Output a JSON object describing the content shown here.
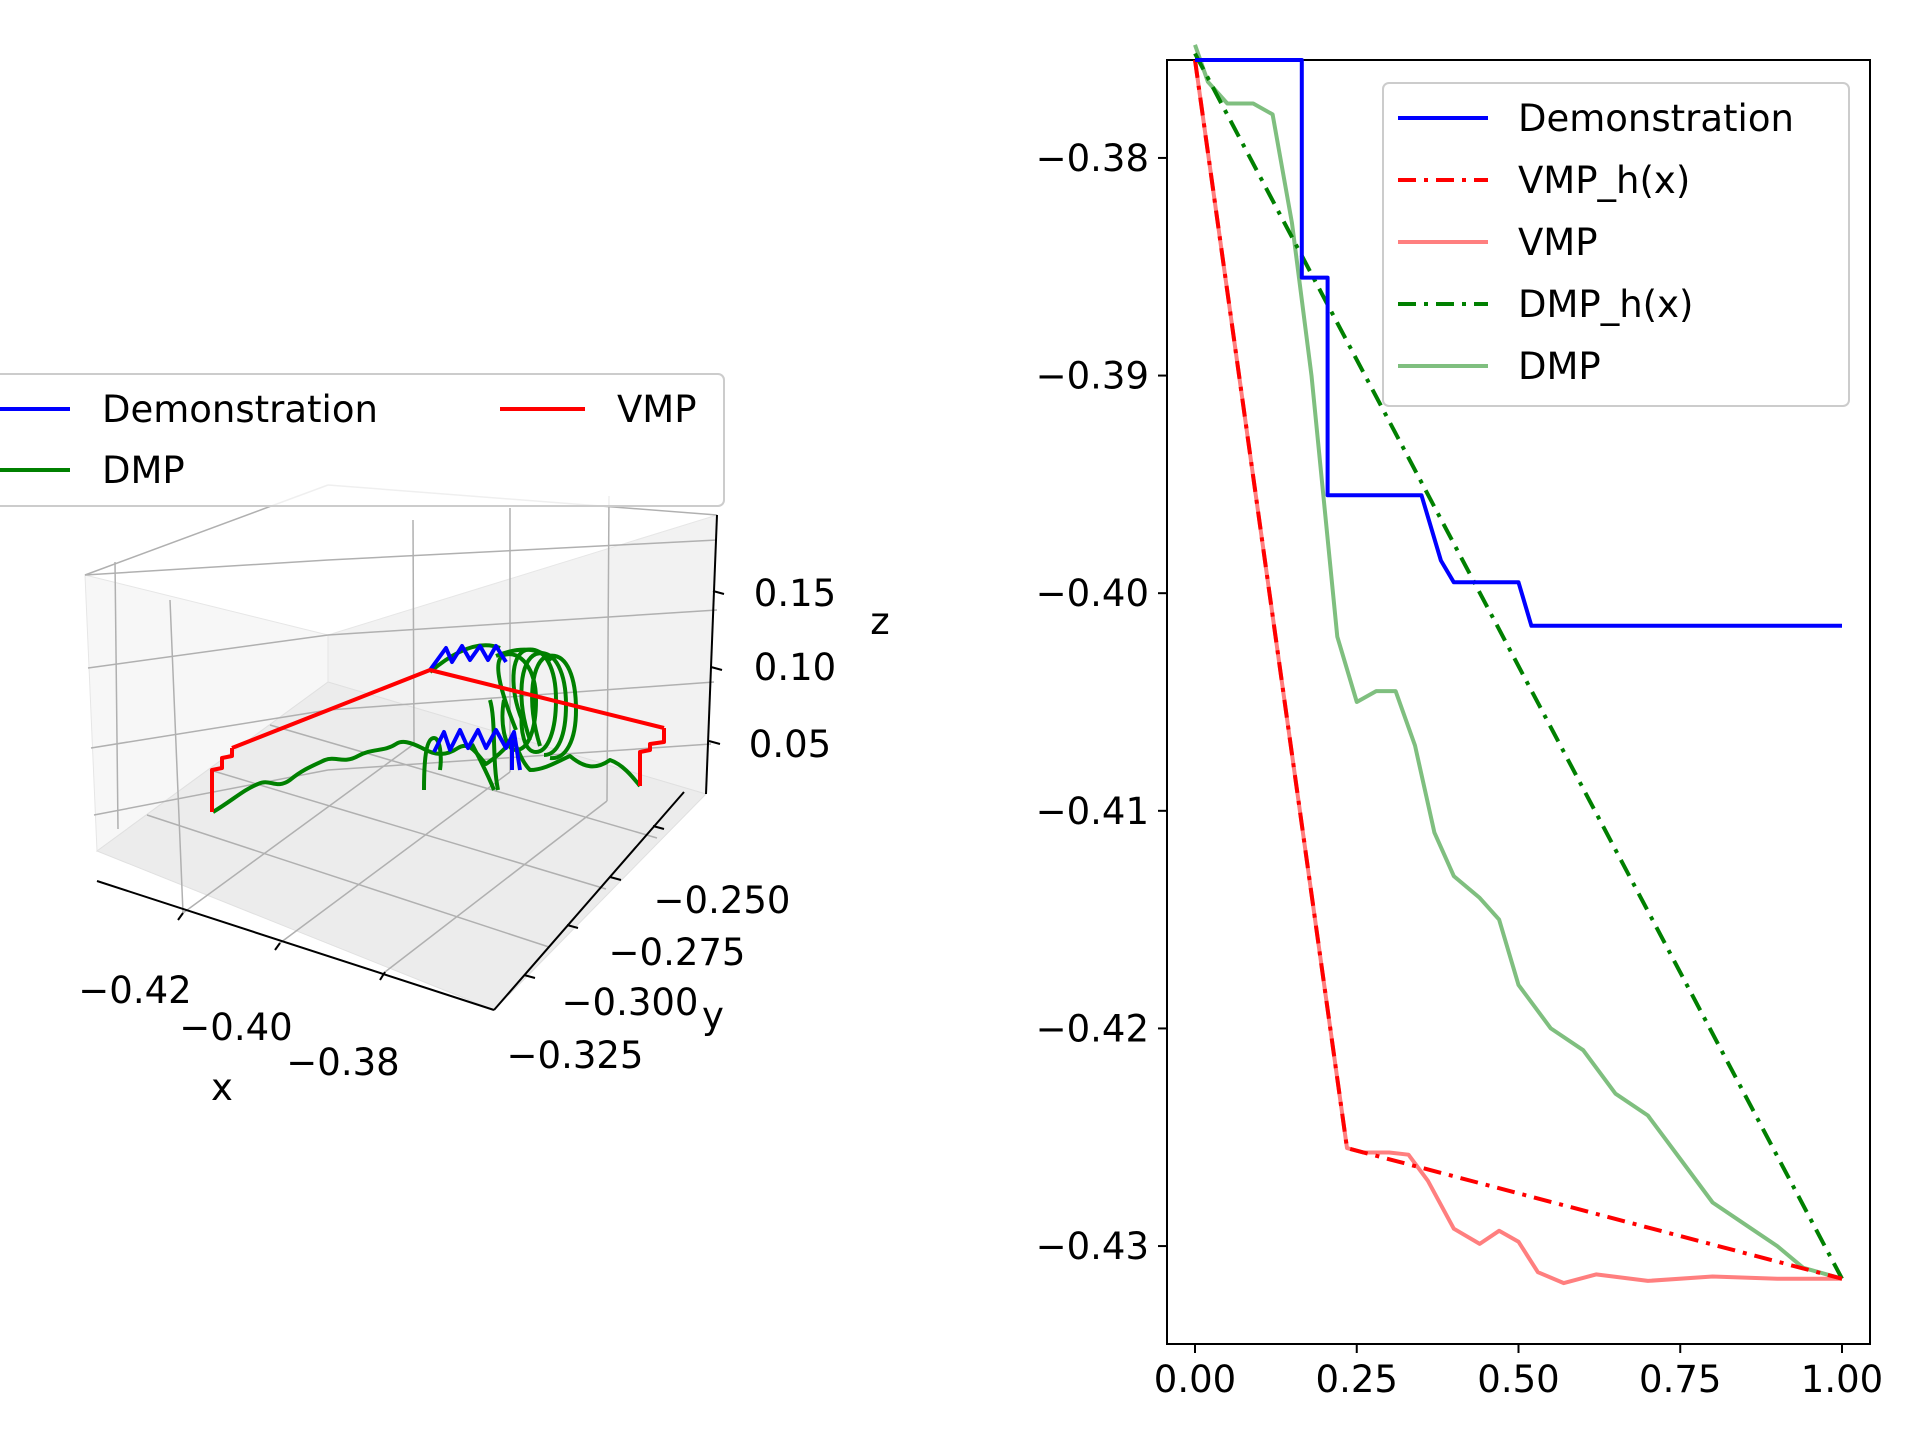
{
  "chart_data": [
    {
      "type": "line",
      "projection": "3d",
      "xlabel": "x",
      "ylabel": "y",
      "zlabel": "z",
      "x_ticks": [
        "−0.42",
        "−0.40",
        "−0.38"
      ],
      "y_ticks": [
        "−0.250",
        "−0.275",
        "−0.300",
        "−0.325"
      ],
      "z_ticks": [
        "0.15",
        "0.10",
        "0.05"
      ],
      "legend": [
        "Demonstration",
        "VMP",
        "DMP"
      ],
      "legend_placement": "top-left",
      "grid": true,
      "series": [
        {
          "name": "Demonstration",
          "color": "#0000ff",
          "x": [
            -0.376,
            -0.386,
            -0.396,
            -0.399,
            -0.4,
            -0.402
          ],
          "y": [
            -0.29,
            -0.29,
            -0.29,
            -0.29,
            -0.29,
            -0.29
          ],
          "z": [
            0.02,
            0.11,
            0.02,
            0.11,
            0.02,
            0.11
          ]
        },
        {
          "name": "VMP",
          "color": "#ff0000",
          "x": [
            -0.376,
            -0.426,
            -0.431,
            -0.431
          ],
          "y": [
            -0.26,
            -0.29,
            -0.32,
            -0.32
          ],
          "z": [
            0.05,
            0.11,
            0.05,
            0.02
          ]
        },
        {
          "name": "DMP",
          "color": "#008000",
          "x": [
            -0.376,
            -0.39,
            -0.4,
            -0.41,
            -0.42,
            -0.431
          ],
          "y": [
            -0.25,
            -0.27,
            -0.29,
            -0.3,
            -0.31,
            -0.32
          ],
          "z": [
            0.02,
            0.03,
            0.11,
            0.03,
            0.02,
            0.02
          ]
        }
      ]
    },
    {
      "type": "line",
      "xlim": [
        0.0,
        1.0
      ],
      "ylim": [
        -0.4345,
        -0.3755
      ],
      "x_ticks": [
        0.0,
        0.25,
        0.5,
        0.75,
        1.0
      ],
      "x_tick_labels": [
        "0.00",
        "0.25",
        "0.50",
        "0.75",
        "1.00"
      ],
      "y_ticks": [
        -0.38,
        -0.39,
        -0.4,
        -0.41,
        -0.42,
        -0.43
      ],
      "y_tick_labels": [
        "−0.38",
        "−0.39",
        "−0.40",
        "−0.41",
        "−0.42",
        "−0.43"
      ],
      "grid": false,
      "legend_placement": "upper right",
      "series": [
        {
          "name": "Demonstration",
          "color": "#0000ff",
          "style": "solid",
          "alpha": 1,
          "x": [
            0.0,
            0.165,
            0.165,
            0.19,
            0.19,
            0.205,
            0.205,
            0.35,
            0.35,
            0.38,
            0.38,
            0.4,
            0.4,
            0.5,
            0.5,
            0.52,
            0.52,
            1.0
          ],
          "y": [
            -0.3755,
            -0.3755,
            -0.3855,
            -0.3855,
            -0.3855,
            -0.3855,
            -0.3955,
            -0.3955,
            -0.3955,
            -0.3985,
            -0.3985,
            -0.3995,
            -0.3995,
            -0.3995,
            -0.3995,
            -0.4015,
            -0.4015,
            -0.4015
          ]
        },
        {
          "name": "VMP_h(x)",
          "color": "#ff0000",
          "style": "dashdot",
          "alpha": 1,
          "x": [
            0.0,
            0.235,
            1.0
          ],
          "y": [
            -0.3755,
            -0.4255,
            -0.4315
          ]
        },
        {
          "name": "VMP",
          "color": "#ff0000",
          "style": "solid",
          "alpha": 0.5,
          "x": [
            0.0,
            0.235,
            0.26,
            0.3,
            0.33,
            0.36,
            0.4,
            0.44,
            0.47,
            0.5,
            0.53,
            0.57,
            0.62,
            0.7,
            0.8,
            0.9,
            1.0
          ],
          "y": [
            -0.3755,
            -0.4255,
            -0.4257,
            -0.4257,
            -0.4258,
            -0.427,
            -0.4292,
            -0.4299,
            -0.4293,
            -0.4298,
            -0.4312,
            -0.4317,
            -0.4313,
            -0.4316,
            -0.4314,
            -0.4315,
            -0.4315
          ]
        },
        {
          "name": "DMP_h(x)",
          "color": "#008000",
          "style": "dashdot",
          "alpha": 1,
          "x": [
            0.0,
            1.0
          ],
          "y": [
            -0.3752,
            -0.4315
          ]
        },
        {
          "name": "DMP",
          "color": "#008000",
          "style": "solid",
          "alpha": 0.5,
          "x": [
            0.0,
            0.02,
            0.05,
            0.09,
            0.12,
            0.15,
            0.18,
            0.2,
            0.22,
            0.25,
            0.28,
            0.31,
            0.34,
            0.37,
            0.4,
            0.44,
            0.47,
            0.5,
            0.55,
            0.6,
            0.65,
            0.7,
            0.75,
            0.8,
            0.85,
            0.9,
            0.94,
            1.0
          ],
          "y": [
            -0.3748,
            -0.3765,
            -0.3775,
            -0.3775,
            -0.378,
            -0.383,
            -0.39,
            -0.396,
            -0.402,
            -0.405,
            -0.4045,
            -0.4045,
            -0.407,
            -0.411,
            -0.413,
            -0.414,
            -0.415,
            -0.418,
            -0.42,
            -0.421,
            -0.423,
            -0.424,
            -0.426,
            -0.428,
            -0.429,
            -0.43,
            -0.431,
            -0.4315
          ]
        }
      ]
    }
  ]
}
